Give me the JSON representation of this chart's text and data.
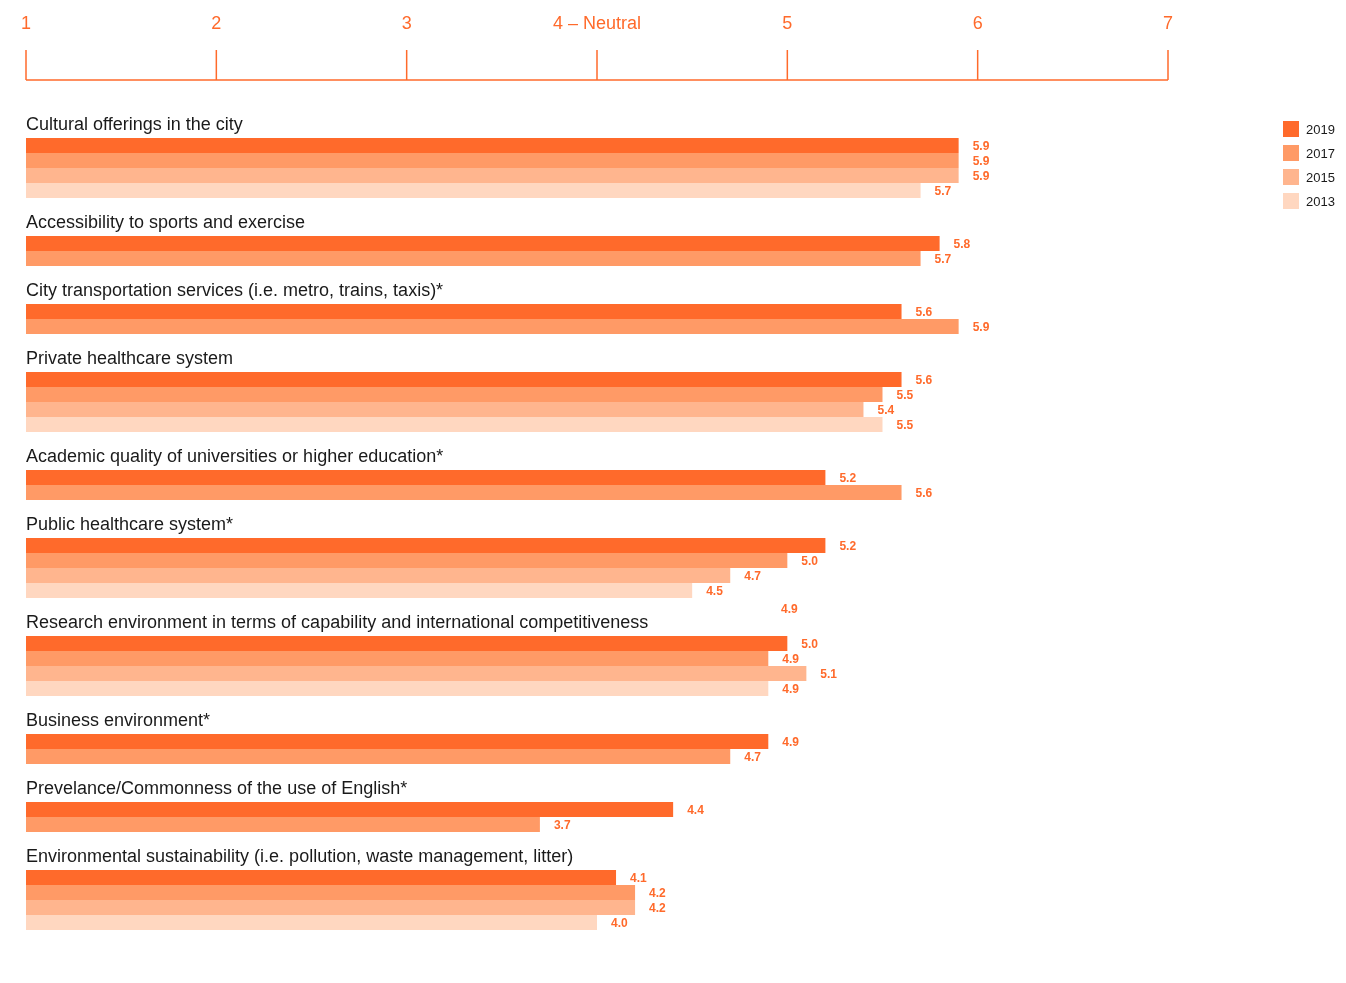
{
  "chart_data": {
    "type": "bar",
    "orientation": "horizontal",
    "legend": "top right",
    "categories": [
      "Cultural offerings in the city",
      "Accessibility to sports and exercise",
      "City transportation services (i.e. metro, trains, taxis)*",
      "Private healthcare system",
      "Academic quality of universities or higher education*",
      "Public healthcare system*",
      "Research environment in terms of capability and international competitiveness",
      "Business environment*",
      "Prevelance/Commonness of the use of English*",
      "Environmental sustainability (i.e. pollution, waste management, litter)"
    ],
    "xlim": [
      1,
      7
    ],
    "xticks": [
      1,
      2,
      3,
      {
        "value": 4,
        "label": "4 – Neutral"
      },
      5,
      6,
      7
    ],
    "series": [
      {
        "name": "2019",
        "color": "#ff6a2b",
        "values": [
          5.9,
          5.8,
          5.6,
          5.6,
          5.2,
          5.2,
          5.0,
          4.9,
          4.4,
          4.1
        ],
        "value_labels": [
          "5.9",
          "5.8",
          "5.6",
          "5.6",
          "5.2",
          "5.2",
          "5.0",
          "4.9",
          "4.4",
          "4.1"
        ]
      },
      {
        "name": "2017",
        "color": "#ff9a66",
        "values": [
          5.9,
          5.7,
          5.9,
          5.5,
          5.6,
          5.0,
          4.9,
          4.7,
          3.7,
          4.2
        ],
        "value_labels": [
          "5.9",
          "5.7",
          "5.9",
          "5.5",
          "5.6",
          "5.0",
          "4.9",
          "4.7",
          "3.7",
          "4.2"
        ]
      },
      {
        "name": "2015",
        "color": "#ffb58e",
        "values": [
          5.9,
          null,
          null,
          5.4,
          null,
          4.7,
          5.1,
          null,
          null,
          4.2
        ],
        "value_labels": [
          "5.9",
          null,
          null,
          "5.4",
          null,
          "4.7",
          "5.1",
          null,
          null,
          "4.2"
        ]
      },
      {
        "name": "2013",
        "color": "#ffd7c0",
        "values": [
          5.7,
          null,
          null,
          5.5,
          null,
          4.5,
          4.9,
          null,
          null,
          4.0
        ],
        "value_labels": [
          "5.7",
          null,
          null,
          "5.5",
          null,
          "4.5",
          "4.9",
          null,
          null,
          "4.0"
        ]
      }
    ],
    "annotations": [
      "4.9"
    ]
  }
}
